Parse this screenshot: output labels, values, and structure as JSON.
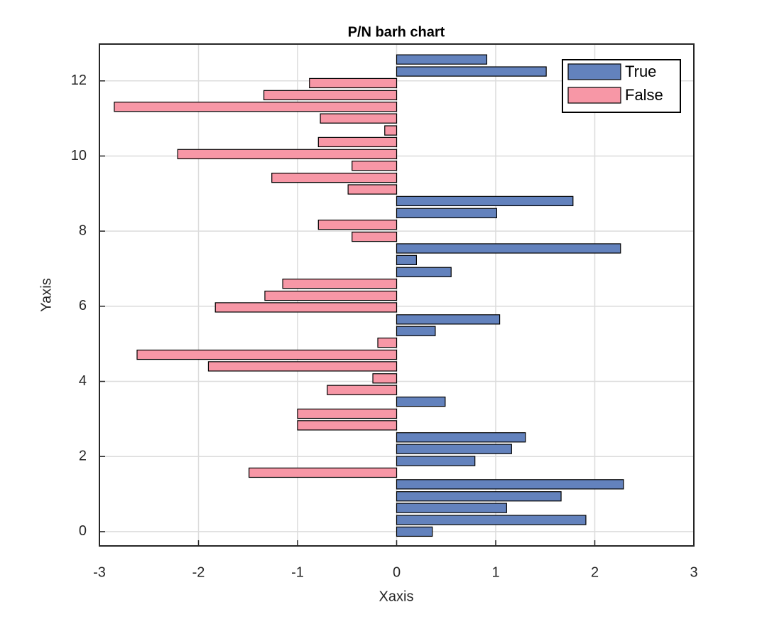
{
  "chart_data": {
    "type": "barh",
    "title": "P/N barh chart",
    "x_label": "Xaxis",
    "y_label": "Yaxis",
    "y": [
      0,
      0.31,
      0.63,
      0.94,
      1.26,
      1.57,
      1.88,
      2.2,
      2.51,
      2.83,
      3.14,
      3.46,
      3.77,
      4.08,
      4.4,
      4.71,
      5.03,
      5.34,
      5.65,
      5.97,
      6.28,
      6.6,
      6.91,
      7.23,
      7.54,
      7.85,
      8.17,
      8.48,
      8.8,
      9.11,
      9.42,
      9.74,
      10.05,
      10.37,
      10.68,
      11.0,
      11.31,
      11.62,
      11.94,
      12.25,
      12.57
    ],
    "series": [
      {
        "name": "True",
        "color": "#6382bd",
        "values": [
          0.36,
          1.91,
          1.11,
          1.66,
          2.29,
          null,
          0.79,
          1.16,
          1.3,
          null,
          null,
          0.49,
          null,
          null,
          null,
          null,
          null,
          0.39,
          1.04,
          null,
          null,
          null,
          0.55,
          0.2,
          2.26,
          null,
          null,
          1.01,
          1.78,
          null,
          null,
          null,
          null,
          null,
          null,
          null,
          null,
          null,
          null,
          1.51,
          0.91
        ]
      },
      {
        "name": "False",
        "color": "#f797a6",
        "values": [
          null,
          null,
          null,
          null,
          null,
          -1.49,
          null,
          null,
          null,
          -1.0,
          -1.0,
          null,
          -0.7,
          -0.24,
          -1.9,
          -2.62,
          -0.19,
          null,
          null,
          -1.83,
          -1.33,
          -1.15,
          null,
          null,
          null,
          -0.45,
          -0.79,
          null,
          null,
          -0.49,
          -1.26,
          -0.45,
          -2.21,
          -0.79,
          -0.12,
          -0.77,
          -2.85,
          -1.34,
          -0.88,
          null,
          null
        ]
      }
    ],
    "xlim": [
      -3,
      3
    ],
    "xticks": [
      -3,
      -2,
      -1,
      0,
      1,
      2,
      3
    ],
    "ylim": [
      -0.38,
      12.98
    ],
    "yticks": [
      0,
      2,
      4,
      6,
      8,
      10,
      12
    ],
    "grid": true,
    "legend": "upper-right"
  }
}
